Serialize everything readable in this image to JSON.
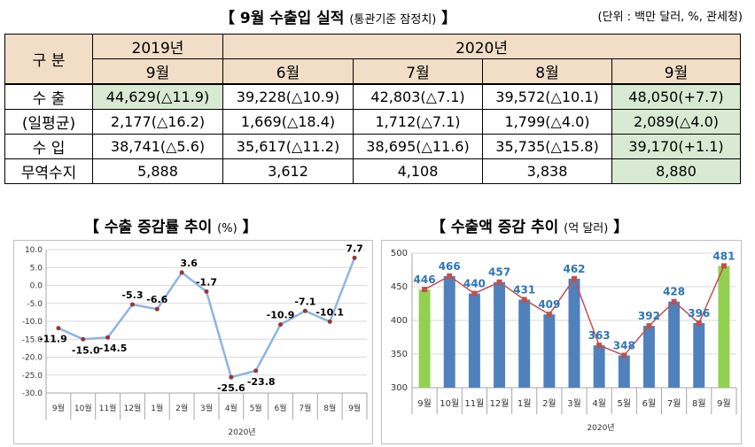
{
  "header": {
    "title": "【 9월 수출입 실적",
    "title_note": "(통관기준 잠정치)",
    "title_end": "】",
    "unit": "(단위 : 백만 달러, %, 관세청)"
  },
  "table": {
    "gubun": "구 분",
    "year_2019": "2019년",
    "year_2020": "2020년",
    "months": [
      "9월",
      "6월",
      "7월",
      "8월",
      "9월"
    ],
    "rows": [
      {
        "label": "수  출",
        "cells": [
          "44,629(△11.9)",
          "39,228(△10.9)",
          "42,803(△7.1)",
          "39,572(△10.1)",
          "48,050(+7.7)"
        ]
      },
      {
        "label": "(일평균)",
        "cells": [
          "2,177(△16.2)",
          "1,669(△18.4)",
          "1,712(△7.1)",
          "1,799(△4.0)",
          "2,089(△4.0)"
        ]
      },
      {
        "label": "수  입",
        "cells": [
          "38,741(△5.6)",
          "35,617(△11.2)",
          "38,695(△11.6)",
          "35,735(△15.8)",
          "39,170(+1.1)"
        ]
      },
      {
        "label": "무역수지",
        "cells": [
          "5,888",
          "3,612",
          "4,108",
          "3,838",
          "8,880"
        ]
      }
    ]
  },
  "chart_data": [
    {
      "type": "line",
      "title": "【 수출 증감률 추이",
      "title_unit": "(%)",
      "title_end": "】",
      "categories": [
        "9월",
        "10월",
        "11월",
        "12월",
        "1월",
        "2월",
        "3월",
        "4월",
        "5월",
        "6월",
        "7월",
        "8월",
        "9월"
      ],
      "values": [
        -11.9,
        -15.0,
        -14.5,
        -5.3,
        -6.6,
        3.6,
        -1.7,
        -25.6,
        -23.8,
        -10.9,
        -7.1,
        -10.1,
        7.7
      ],
      "xlabel": "2020년",
      "ylim": [
        -30,
        10
      ],
      "yticks": [
        "10.0",
        "5.0",
        "0.0",
        "-5.0",
        "-10.0",
        "-15.0",
        "-20.0",
        "-25.0",
        "-30.0"
      ],
      "grid": true,
      "line_color": "#8eb4e3",
      "marker_color": "#953735"
    },
    {
      "type": "bar",
      "title": "【 수출액 증감 추이",
      "title_unit": "(억 달러)",
      "title_end": "】",
      "categories": [
        "9월",
        "10월",
        "11월",
        "12월",
        "1월",
        "2월",
        "3월",
        "4월",
        "5월",
        "6월",
        "7월",
        "8월",
        "9월"
      ],
      "values": [
        446,
        466,
        440,
        457,
        431,
        409,
        462,
        363,
        348,
        392,
        428,
        396,
        481
      ],
      "xlabel": "2020년",
      "ylim": [
        300,
        500
      ],
      "yticks": [
        "500",
        "450",
        "400",
        "350",
        "300"
      ],
      "grid": true,
      "bar_color": "#4f81bd",
      "highlight_color": "#92d050",
      "label_color": "#2e75b6",
      "line_color": "#c0504d"
    }
  ]
}
